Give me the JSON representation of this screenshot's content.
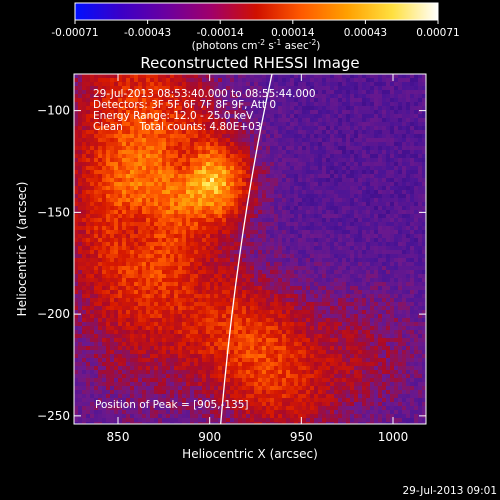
{
  "colorbar": {
    "ticks": [
      "-0.00071",
      "-0.00043",
      "-0.00014",
      "0.00014",
      "0.00043",
      "0.00071"
    ],
    "units_prefix": "(photons cm",
    "units_exp1": "-2",
    "units_mid": " s",
    "units_exp2": "-1",
    "units_mid2": " asec",
    "units_exp3": "-2",
    "units_suffix": ")",
    "stops": [
      "#0010ff",
      "#3a00c8",
      "#6a00a0",
      "#a0006a",
      "#d01000",
      "#ff5a00",
      "#ffa000",
      "#ffe040",
      "#ffffff"
    ]
  },
  "footer": {
    "timestamp": "29-Jul-2013 09:01"
  },
  "chart_data": {
    "type": "heatmap",
    "title": "Reconstructed RHESSI Image",
    "xlabel": "Heliocentric X (arcsec)",
    "ylabel": "Heliocentric Y (arcsec)",
    "xlim": [
      826,
      1018
    ],
    "ylim": [
      -254,
      -82
    ],
    "x_ticks": [
      850,
      900,
      950,
      1000
    ],
    "y_ticks": [
      -100,
      -150,
      -200,
      -250
    ],
    "annotations": [
      "29-Jul-2013 08:53:40.000 to 08:55:44.000",
      "Detectors: 3F 5F 6F 7F 8F 9F, Att 0",
      "Energy Range: 12.0 - 25.0 keV",
      "Clean     Total counts: 4.80E+03"
    ],
    "peak_label": "Position of Peak = [905,-135]",
    "peak": [
      905,
      -135
    ],
    "limb_curve": [
      [
        934,
        -82
      ],
      [
        915,
        -160
      ],
      [
        906,
        -254
      ]
    ]
  }
}
